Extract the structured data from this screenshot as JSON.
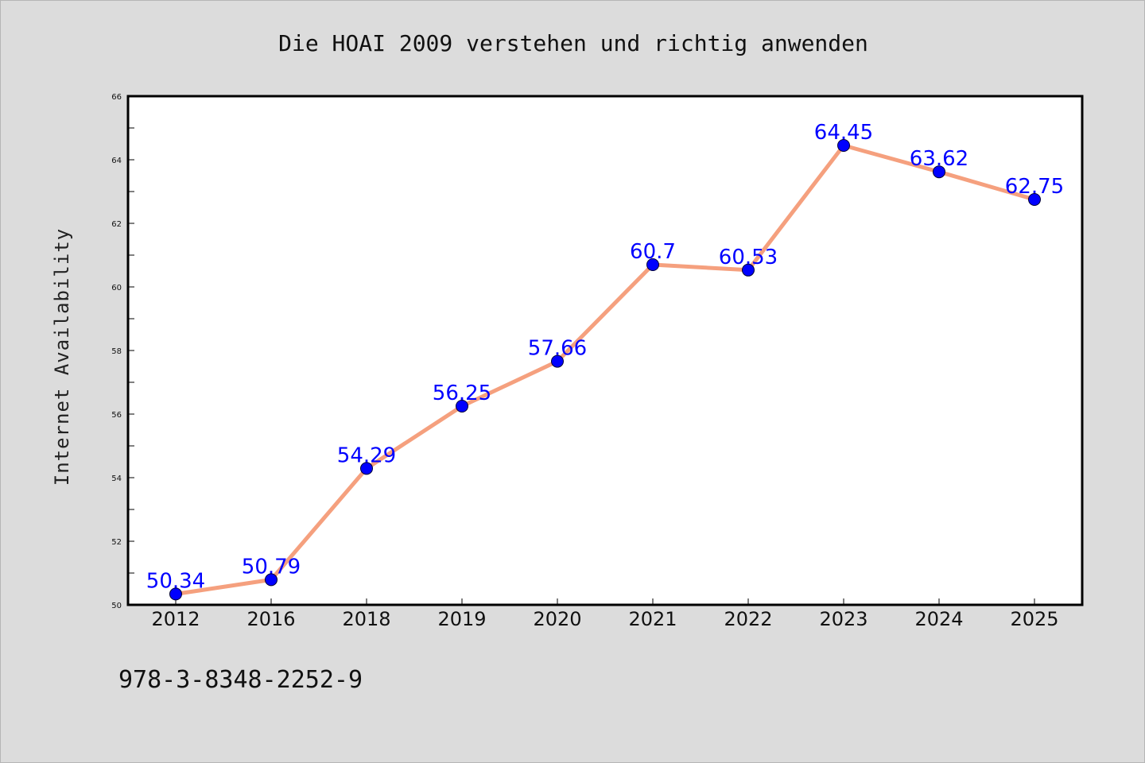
{
  "chart_data": {
    "type": "line",
    "title": "Die HOAI 2009 verstehen und richtig anwenden",
    "xlabel": "",
    "ylabel": "Internet Availability",
    "categories": [
      "2012",
      "2016",
      "2018",
      "2019",
      "2020",
      "2021",
      "2022",
      "2023",
      "2024",
      "2025"
    ],
    "series": [
      {
        "values": [
          50.34,
          50.79,
          54.29,
          56.25,
          57.66,
          60.7,
          60.53,
          64.45,
          63.62,
          62.75
        ],
        "line_color": "#f5a07e",
        "marker_color": "#0000ff"
      }
    ],
    "data_labels": [
      "50.34",
      "50.79",
      "54.29",
      "56.25",
      "57.66",
      "60.7",
      "60.53",
      "64.45",
      "63.62",
      "62.75"
    ],
    "ylim": [
      50,
      66
    ],
    "yticks": [
      "50",
      "52",
      "54",
      "56",
      "58",
      "60",
      "62",
      "64",
      "66"
    ],
    "grid": false,
    "legend": "none"
  },
  "footer": {
    "isbn": "978-3-8348-2252-9"
  },
  "colors": {
    "background": "#dcdcdc",
    "plot_background": "#ffffff",
    "data_label": "#0000ff"
  }
}
